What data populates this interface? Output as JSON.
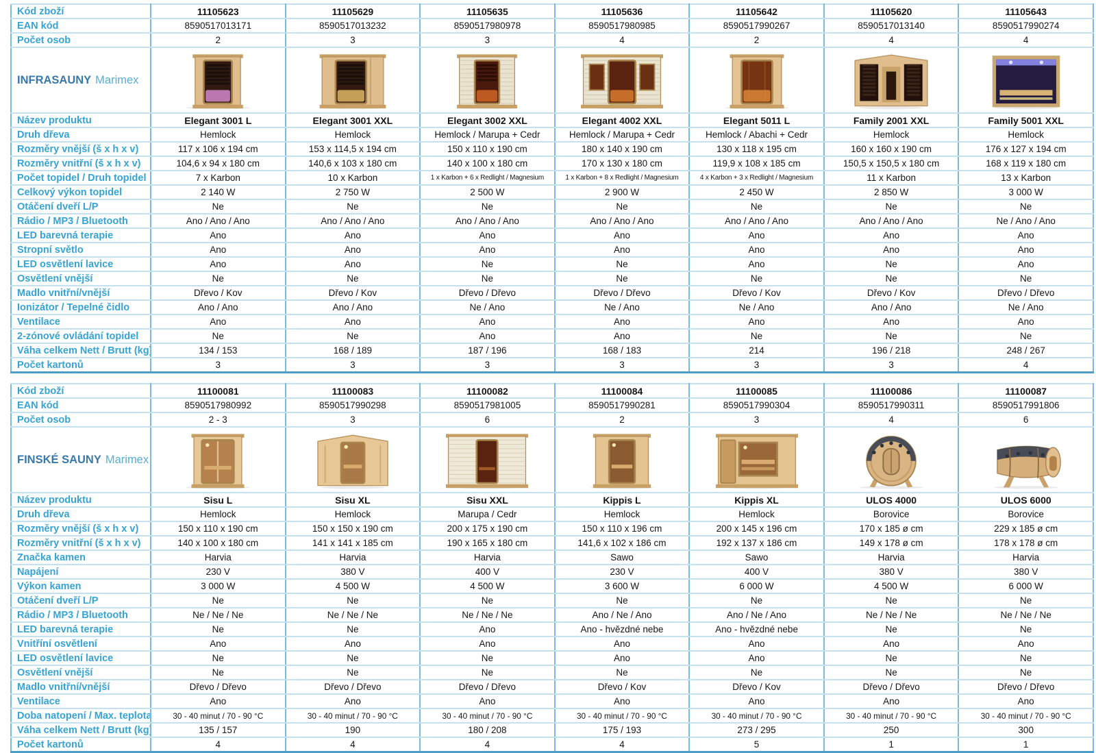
{
  "accent_colors": {
    "label_text": "#35a4d4",
    "category_bold_text": "#3879a9",
    "category_light_text": "#58aed5",
    "grid_horizontal": "#c3e1ef",
    "grid_vertical": "#79bcd9",
    "table_bottom_edge": "#4d9ec6",
    "value_text": "#151515"
  },
  "tables": [
    {
      "name": "infrasauny",
      "category_bold": "INFRASAUNY",
      "category_light": "Marimex",
      "photo_styles": [
        "ir-narrow",
        "ir-wide",
        "ir-slat",
        "ir-slat-wide",
        "ir-warm",
        "ir-corner",
        "ir-night"
      ],
      "pre_rows": [
        {
          "key": "kod-zbozi",
          "label": "Kód zboží",
          "bold": true,
          "values": [
            "11105623",
            "11105629",
            "11105635",
            "11105636",
            "11105642",
            "11105620",
            "11105643"
          ]
        },
        {
          "key": "ean-kod",
          "label": "EAN kód",
          "values": [
            "8590517013171",
            "8590517013232",
            "8590517980978",
            "8590517980985",
            "8590517990267",
            "8590517013140",
            "8590517990274"
          ]
        },
        {
          "key": "pocet-osob",
          "label": "Počet osob",
          "values": [
            "2",
            "3",
            "3",
            "4",
            "2",
            "4",
            "4"
          ]
        }
      ],
      "post_rows": [
        {
          "key": "nazev-produktu",
          "label": "Název produktu",
          "bold": true,
          "values": [
            "Elegant 3001 L",
            "Elegant 3001 XXL",
            "Elegant 3002 XXL",
            "Elegant 4002 XXL",
            "Elegant 5011 L",
            "Family 2001 XXL",
            "Family 5001 XXL"
          ]
        },
        {
          "key": "druh-dreva",
          "label": "Druh dřeva",
          "values": [
            "Hemlock",
            "Hemlock",
            "Hemlock / Marupa + Cedr",
            "Hemlock / Marupa + Cedr",
            "Hemlock / Abachi + Cedr",
            "Hemlock",
            "Hemlock"
          ]
        },
        {
          "key": "rozmery-vnejsi",
          "label": "Rozměry vnější (š x h x v)",
          "values": [
            "117 x 106 x 194 cm",
            "153 x 114,5 x 194 cm",
            "150 x 110 x 190 cm",
            "180 x 140 x 190 cm",
            "130 x 118 x 195 cm",
            "160 x 160 x 190 cm",
            "176 x 127 x 194 cm"
          ]
        },
        {
          "key": "rozmery-vnitrni",
          "label": "Rozměry vnitřní (š x h x v)",
          "values": [
            "104,6 x 94 x 180 cm",
            "140,6 x 103 x 180 cm",
            "140 x 100 x 180 cm",
            "170 x 130 x 180 cm",
            "119,9 x 108 x 185 cm",
            "150,5 x 150,5 x 180 cm",
            "168 x 119 x 180 cm"
          ]
        },
        {
          "key": "pocet-topidel",
          "label": "Počet topidel / Druh topidel",
          "values": [
            "7 x Karbon",
            "10 x Karbon",
            "1 x Karbon + 6 x Redlight / Magnesium",
            "1 x Karbon + 8 x Redlight / Magnesium",
            "4 x Karbon + 3 x Redlight / Magnesium",
            "11 x Karbon",
            "13 x Karbon"
          ]
        },
        {
          "key": "celkovy-vykon-topidel",
          "label": "Celkový výkon topidel",
          "values": [
            "2 140 W",
            "2 750 W",
            "2 500 W",
            "2 900 W",
            "2 450 W",
            "2 850 W",
            "3 000 W"
          ]
        },
        {
          "key": "otaceni-dveri",
          "label": "Otáčení dveří L/P",
          "values": [
            "Ne",
            "Ne",
            "Ne",
            "Ne",
            "Ne",
            "Ne",
            "Ne"
          ]
        },
        {
          "key": "radio-mp3-bluetooth",
          "label": "Rádio / MP3 / Bluetooth",
          "values": [
            "Ano / Ano / Ano",
            "Ano / Ano / Ano",
            "Ano / Ano / Ano",
            "Ano / Ano / Ano",
            "Ano / Ano / Ano",
            "Ano / Ano / Ano",
            "Ne / Ano / Ano"
          ]
        },
        {
          "key": "led-barevna-terapie",
          "label": "LED barevná terapie",
          "values": [
            "Ano",
            "Ano",
            "Ano",
            "Ano",
            "Ano",
            "Ano",
            "Ano"
          ]
        },
        {
          "key": "stropni-svetlo",
          "label": "Stropní světlo",
          "values": [
            "Ano",
            "Ano",
            "Ano",
            "Ano",
            "Ano",
            "Ano",
            "Ano"
          ]
        },
        {
          "key": "led-osvetleni-lavice",
          "label": "LED osvětlení lavice",
          "values": [
            "Ano",
            "Ano",
            "Ne",
            "Ne",
            "Ano",
            "Ne",
            "Ano"
          ]
        },
        {
          "key": "osvetleni-vnejsi",
          "label": "Osvětlení vnější",
          "values": [
            "Ne",
            "Ne",
            "Ne",
            "Ne",
            "Ne",
            "Ne",
            "Ne"
          ]
        },
        {
          "key": "madlo",
          "label": "Madlo vnitřní/vnější",
          "values": [
            "Dřevo / Kov",
            "Dřevo / Kov",
            "Dřevo / Dřevo",
            "Dřevo / Dřevo",
            "Dřevo / Kov",
            "Dřevo / Kov",
            "Dřevo / Dřevo"
          ]
        },
        {
          "key": "ionizator-tepelne-cidlo",
          "label": "Ionizátor / Tepelné čidlo",
          "values": [
            "Ano / Ano",
            "Ano / Ano",
            "Ne / Ano",
            "Ne / Ano",
            "Ne / Ano",
            "Ano / Ano",
            "Ne / Ano"
          ]
        },
        {
          "key": "ventilace",
          "label": "Ventilace",
          "values": [
            "Ano",
            "Ano",
            "Ano",
            "Ano",
            "Ano",
            "Ano",
            "Ano"
          ]
        },
        {
          "key": "dvouzonove-ovladani",
          "label": "2-zónové ovládání topidel",
          "values": [
            "Ne",
            "Ne",
            "Ano",
            "Ano",
            "Ne",
            "Ne",
            "Ne"
          ]
        },
        {
          "key": "vaha-celkem",
          "label": "Váha celkem Nett / Brutt (kg)",
          "values": [
            "134 / 153",
            "168 / 189",
            "187 / 196",
            "168 / 183",
            "214",
            "196 / 218",
            "248 / 267"
          ]
        },
        {
          "key": "pocet-kartonu",
          "label": "Počet kartonů",
          "values": [
            "3",
            "3",
            "3",
            "3",
            "3",
            "3",
            "4"
          ]
        }
      ]
    },
    {
      "name": "finske-sauny",
      "category_bold": "FINSKÉ SAUNY",
      "category_light": "Marimex",
      "photo_styles": [
        "fin-glass",
        "fin-corner",
        "fin-slat-wide",
        "fin-door",
        "fin-window",
        "barrel-front",
        "barrel-side"
      ],
      "pre_rows": [
        {
          "key": "kod-zbozi",
          "label": "Kód zboží",
          "bold": true,
          "values": [
            "11100081",
            "11100083",
            "11100082",
            "11100084",
            "11100085",
            "11100086",
            "11100087"
          ]
        },
        {
          "key": "ean-kod",
          "label": "EAN kód",
          "values": [
            "8590517980992",
            "8590517990298",
            "8590517981005",
            "8590517990281",
            "8590517990304",
            "8590517990311",
            "8590517991806"
          ]
        },
        {
          "key": "pocet-osob",
          "label": "Počet osob",
          "values": [
            "2 - 3",
            "3",
            "6",
            "2",
            "3",
            "4",
            "6"
          ]
        }
      ],
      "post_rows": [
        {
          "key": "nazev-produktu",
          "label": "Název produktu",
          "bold": true,
          "values": [
            "Sisu L",
            "Sisu XL",
            "Sisu XXL",
            "Kippis L",
            "Kippis XL",
            "ULOS 4000",
            "ULOS 6000"
          ]
        },
        {
          "key": "druh-dreva",
          "label": "Druh dřeva",
          "values": [
            "Hemlock",
            "Hemlock",
            "Marupa / Cedr",
            "Hemlock",
            "Hemlock",
            "Borovice",
            "Borovice"
          ]
        },
        {
          "key": "rozmery-vnejsi",
          "label": "Rozměry vnější (š x h x v)",
          "values": [
            "150 x 110 x 190 cm",
            "150 x 150 x 190 cm",
            "200 x 175 x 190 cm",
            "150 x 110 x 196 cm",
            "200 x 145 x 196 cm",
            "170 x 185 ø cm",
            "229 x 185 ø cm"
          ]
        },
        {
          "key": "rozmery-vnitrni",
          "label": "Rozměry vnitřní (š x h x v)",
          "values": [
            "140 x 100 x 180 cm",
            "141 x 141 x 185 cm",
            "190 x 165 x 180 cm",
            "141,6 x 102 x 186 cm",
            "192 x 137 x 186 cm",
            "149 x 178 ø cm",
            "178 x 178 ø cm"
          ]
        },
        {
          "key": "znacka-kamen",
          "label": "Značka kamen",
          "values": [
            "Harvia",
            "Harvia",
            "Harvia",
            "Sawo",
            "Sawo",
            "Harvia",
            "Harvia"
          ]
        },
        {
          "key": "napajeni",
          "label": "Napájení",
          "values": [
            "230 V",
            "380 V",
            "400 V",
            "230 V",
            "400 V",
            "380 V",
            "380 V"
          ]
        },
        {
          "key": "vykon-kamen",
          "label": "Výkon kamen",
          "values": [
            "3 000 W",
            "4 500 W",
            "4 500 W",
            "3 600 W",
            "6 000 W",
            "4 500 W",
            "6 000 W"
          ]
        },
        {
          "key": "otaceni-dveri",
          "label": "Otáčení dveří L/P",
          "values": [
            "Ne",
            "Ne",
            "Ne",
            "Ne",
            "Ne",
            "Ne",
            "Ne"
          ]
        },
        {
          "key": "radio-mp3-bluetooth",
          "label": "Rádio / MP3 / Bluetooth",
          "values": [
            "Ne / Ne / Ne",
            "Ne / Ne / Ne",
            "Ne / Ne / Ne",
            "Ano / Ne / Ano",
            "Ano / Ne / Ano",
            "Ne / Ne / Ne",
            "Ne / Ne / Ne"
          ]
        },
        {
          "key": "led-barevna-terapie",
          "label": "LED barevná terapie",
          "values": [
            "Ne",
            "Ne",
            "Ano",
            "Ano - hvězdné nebe",
            "Ano - hvězdné nebe",
            "Ne",
            "Ne"
          ]
        },
        {
          "key": "vnitrni-osvetleni",
          "label": "Vnitříní osvětlení",
          "values": [
            "Ano",
            "Ano",
            "Ano",
            "Ano",
            "Ano",
            "Ano",
            "Ano"
          ]
        },
        {
          "key": "led-osvetleni-lavice",
          "label": "LED osvětlení lavice",
          "values": [
            "Ne",
            "Ne",
            "Ne",
            "Ano",
            "Ano",
            "Ne",
            "Ne"
          ]
        },
        {
          "key": "osvetleni-vnejsi",
          "label": "Osvětlení vnější",
          "values": [
            "Ne",
            "Ne",
            "Ne",
            "Ne",
            "Ne",
            "Ne",
            "Ne"
          ]
        },
        {
          "key": "madlo",
          "label": "Madlo vnitřní/vnější",
          "values": [
            "Dřevo / Dřevo",
            "Dřevo / Dřevo",
            "Dřevo / Dřevo",
            "Dřevo / Kov",
            "Dřevo / Kov",
            "Dřevo / Dřevo",
            "Dřevo / Dřevo"
          ]
        },
        {
          "key": "ventilace",
          "label": "Ventilace",
          "values": [
            "Ano",
            "Ano",
            "Ano",
            "Ano",
            "Ano",
            "Ano",
            "Ano"
          ]
        },
        {
          "key": "doba-natopeni",
          "label": "Doba natopení / Max. teplota",
          "values": [
            "30 - 40 minut / 70 - 90 °C",
            "30 - 40 minut / 70 - 90 °C",
            "30 - 40 minut / 70 - 90 °C",
            "30 - 40 minut / 70 - 90 °C",
            "30 - 40 minut / 70 - 90 °C",
            "30 - 40 minut / 70 - 90 °C",
            "30 - 40 minut / 70 - 90 °C"
          ]
        },
        {
          "key": "vaha-celkem",
          "label": "Váha celkem Nett / Brutt (kg)",
          "values": [
            "135 / 157",
            "190",
            "180 / 208",
            "175 / 193",
            "273 / 295",
            "250",
            "300"
          ]
        },
        {
          "key": "pocet-kartonu",
          "label": "Počet kartonů",
          "values": [
            "4",
            "4",
            "4",
            "4",
            "5",
            "1",
            "1"
          ]
        }
      ]
    }
  ]
}
